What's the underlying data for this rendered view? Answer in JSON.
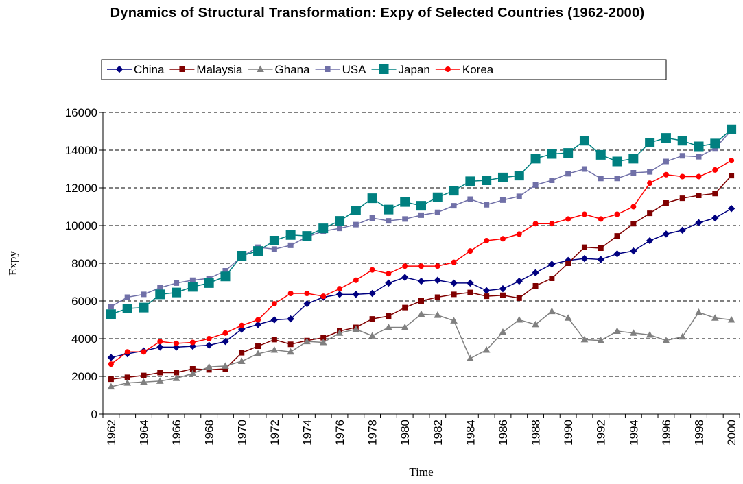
{
  "chart_data": {
    "type": "line",
    "title": "Dynamics of Structural Transformation: Expy of Selected Countries (1962-2000)",
    "x_label": "Time",
    "y_label": "Expy",
    "categories": [
      "1962",
      null,
      "1964",
      null,
      "1966",
      null,
      "1968",
      null,
      "1970",
      null,
      "1972",
      null,
      "1974",
      null,
      "1976",
      null,
      "1978",
      null,
      "1980",
      null,
      "1982",
      null,
      "1984",
      null,
      "1986",
      null,
      "1988",
      null,
      "1990",
      null,
      "1992",
      null,
      "1994",
      null,
      "1996",
      null,
      "1998",
      null,
      "2000"
    ],
    "ylim": [
      0,
      16000
    ],
    "yticks": [
      0,
      2000,
      4000,
      6000,
      8000,
      10000,
      12000,
      14000,
      16000
    ],
    "grid": true,
    "legend": "top",
    "series": [
      {
        "name": "China",
        "color": "#000080",
        "marker": "diamond",
        "values": [
          3000,
          3200,
          3350,
          3550,
          3550,
          3600,
          3650,
          3850,
          4500,
          4750,
          5000,
          5050,
          5850,
          6200,
          6350,
          6350,
          6400,
          6950,
          7250,
          7050,
          7100,
          6950,
          6950,
          6550,
          6650,
          7050,
          7500,
          7950,
          8150,
          8250,
          8200,
          8500,
          8650,
          9200,
          9550,
          9750,
          10150,
          10400,
          10900
        ]
      },
      {
        "name": "Malaysia",
        "color": "#800000",
        "marker": "square",
        "values": [
          1850,
          1950,
          2050,
          2200,
          2200,
          2400,
          2350,
          2400,
          3250,
          3600,
          3950,
          3700,
          3900,
          4050,
          4400,
          4600,
          5050,
          5200,
          5650,
          6000,
          6200,
          6350,
          6450,
          6250,
          6300,
          6150,
          6800,
          7200,
          8000,
          8850,
          8800,
          9450,
          10100,
          10650,
          11200,
          11450,
          11600,
          11700,
          12650
        ]
      },
      {
        "name": "Ghana",
        "color": "#808080",
        "marker": "triangle",
        "values": [
          1450,
          1650,
          1700,
          1750,
          1900,
          2150,
          2500,
          2550,
          2800,
          3200,
          3400,
          3300,
          3850,
          3800,
          4300,
          4500,
          4150,
          4600,
          4600,
          5300,
          5250,
          4950,
          2950,
          3400,
          4350,
          5000,
          4750,
          5450,
          5100,
          3950,
          3900,
          4400,
          4300,
          4200,
          3900,
          4100,
          5400,
          5100,
          5000
        ]
      },
      {
        "name": "USA",
        "color": "#7070a8",
        "marker": "square",
        "values": [
          5700,
          6200,
          6350,
          6700,
          6950,
          7100,
          7200,
          7600,
          8350,
          8850,
          8750,
          8950,
          9400,
          9700,
          9850,
          10050,
          10400,
          10250,
          10350,
          10550,
          10700,
          11050,
          11400,
          11100,
          11350,
          11550,
          12150,
          12400,
          12750,
          13000,
          12500,
          12500,
          12800,
          12850,
          13400,
          13700,
          13650,
          14100,
          15050
        ]
      },
      {
        "name": "Japan",
        "color": "#008080",
        "marker": "bigsquare",
        "values": [
          5300,
          5600,
          5650,
          6350,
          6450,
          6750,
          6950,
          7300,
          8400,
          8650,
          9200,
          9500,
          9450,
          9850,
          10250,
          10800,
          11450,
          10850,
          11250,
          11050,
          11500,
          11850,
          12350,
          12400,
          12550,
          12650,
          13550,
          13800,
          13850,
          14500,
          13750,
          13400,
          13550,
          14400,
          14650,
          14500,
          14200,
          14350,
          15100
        ]
      },
      {
        "name": "Korea",
        "color": "#ff0000",
        "marker": "circle",
        "values": [
          2650,
          3300,
          3300,
          3850,
          3750,
          3800,
          4000,
          4300,
          4700,
          5000,
          5850,
          6400,
          6400,
          6250,
          6650,
          7100,
          7650,
          7450,
          7850,
          7850,
          7850,
          8050,
          8650,
          9200,
          9300,
          9550,
          10100,
          10100,
          10350,
          10600,
          10350,
          10600,
          11000,
          12250,
          12700,
          12600,
          12600,
          12950,
          13450
        ]
      }
    ]
  }
}
